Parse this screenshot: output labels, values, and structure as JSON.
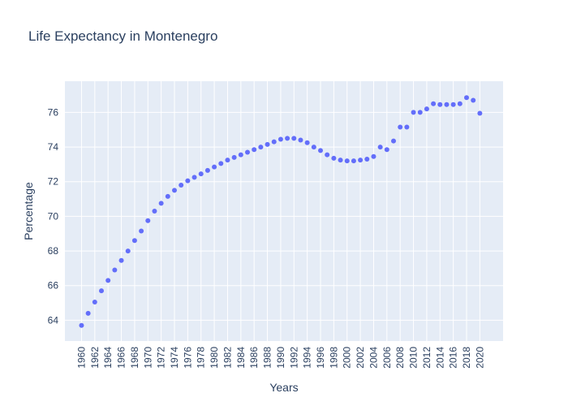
{
  "colors": {
    "plot_background": "#e5ecf6",
    "grid": "#ffffff",
    "marker": "#636efa",
    "text": "#2a3f5f"
  },
  "chart_data": {
    "type": "scatter",
    "title": "Life Expectancy in Montenegro",
    "xlabel": "Years",
    "ylabel": "Percentage",
    "grid": true,
    "xlim": [
      1957.5,
      2023.5
    ],
    "ylim": [
      62.8,
      77.8
    ],
    "x_ticks": [
      "1960",
      "1962",
      "1964",
      "1966",
      "1968",
      "1970",
      "1972",
      "1974",
      "1976",
      "1978",
      "1980",
      "1982",
      "1984",
      "1986",
      "1988",
      "1990",
      "1992",
      "1994",
      "1996",
      "1998",
      "2000",
      "2002",
      "2004",
      "2006",
      "2008",
      "2010",
      "2012",
      "2014",
      "2016",
      "2018",
      "2020"
    ],
    "y_ticks": [
      "64",
      "66",
      "68",
      "70",
      "72",
      "74",
      "76"
    ],
    "x": [
      1960,
      1961,
      1962,
      1963,
      1964,
      1965,
      1966,
      1967,
      1968,
      1969,
      1970,
      1971,
      1972,
      1973,
      1974,
      1975,
      1976,
      1977,
      1978,
      1979,
      1980,
      1981,
      1982,
      1983,
      1984,
      1985,
      1986,
      1987,
      1988,
      1989,
      1990,
      1991,
      1992,
      1993,
      1994,
      1995,
      1996,
      1997,
      1998,
      1999,
      2000,
      2001,
      2002,
      2003,
      2004,
      2005,
      2006,
      2007,
      2008,
      2009,
      2010,
      2011,
      2012,
      2013,
      2014,
      2015,
      2016,
      2017,
      2018,
      2019,
      2020
    ],
    "y": [
      63.7,
      64.4,
      65.05,
      65.7,
      66.3,
      66.9,
      67.45,
      68.0,
      68.6,
      69.15,
      69.75,
      70.3,
      70.75,
      71.15,
      71.5,
      71.8,
      72.05,
      72.25,
      72.45,
      72.65,
      72.85,
      73.05,
      73.25,
      73.4,
      73.55,
      73.7,
      73.85,
      74.0,
      74.15,
      74.3,
      74.45,
      74.5,
      74.5,
      74.4,
      74.25,
      74.0,
      73.8,
      73.55,
      73.35,
      73.25,
      73.2,
      73.2,
      73.25,
      73.3,
      73.45,
      74.0,
      73.85,
      74.35,
      75.15,
      75.15,
      76.0,
      76.0,
      76.2,
      76.5,
      76.45,
      76.45,
      76.45,
      76.5,
      76.85,
      76.7,
      75.95
    ]
  }
}
